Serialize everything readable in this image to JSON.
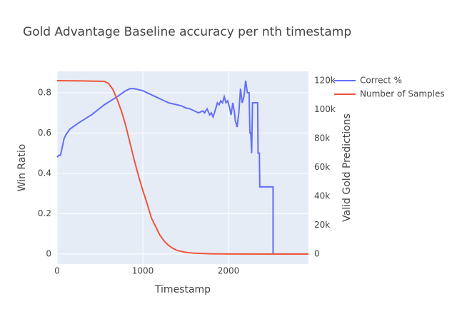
{
  "chart_data": {
    "type": "line",
    "title": "Gold Advantage Baseline accuracy per nth timestamp",
    "x_label": "Timestamp",
    "y_label": "Win Ratio",
    "y2_label": "Valid Gold Predictions",
    "xlim": [
      0,
      2933
    ],
    "xticks": [
      0,
      1000,
      2000
    ],
    "ylim": [
      -0.05,
      0.906
    ],
    "yticks": [
      0,
      0.2,
      0.4,
      0.6,
      0.8
    ],
    "y2lim": [
      -6900,
      126400
    ],
    "y2ticks": [
      0,
      {
        "value": 20000,
        "label": "20k"
      },
      {
        "value": 40000,
        "label": "40k"
      },
      {
        "value": 60000,
        "label": "60k"
      },
      {
        "value": 80000,
        "label": "80k"
      },
      {
        "value": 100000,
        "label": "100k"
      },
      {
        "value": 120000,
        "label": "120k"
      }
    ],
    "grid": true,
    "legend": "top-right",
    "series": [
      {
        "name": "Correct %",
        "color": "#636efa",
        "x": [
          0,
          20,
          40,
          60,
          80,
          100,
          150,
          250,
          400,
          550,
          700,
          800,
          850,
          900,
          1000,
          1050,
          1150,
          1250,
          1300,
          1350,
          1400,
          1450,
          1500,
          1550,
          1600,
          1650,
          1700,
          1720,
          1750,
          1780,
          1800,
          1820,
          1850,
          1870,
          1890,
          1910,
          1930,
          1950,
          1970,
          1990,
          2010,
          2030,
          2050,
          2070,
          2080,
          2100,
          2120,
          2140,
          2160,
          2180,
          2200,
          2220,
          2240,
          2250,
          2260,
          2270,
          2280,
          2340,
          2345,
          2360,
          2365,
          2520,
          2520,
          2933
        ],
        "values": [
          0.48,
          0.49,
          0.49,
          0.53,
          0.57,
          0.59,
          0.62,
          0.65,
          0.69,
          0.74,
          0.78,
          0.81,
          0.82,
          0.82,
          0.81,
          0.8,
          0.78,
          0.76,
          0.75,
          0.745,
          0.74,
          0.735,
          0.725,
          0.72,
          0.71,
          0.7,
          0.71,
          0.7,
          0.72,
          0.69,
          0.7,
          0.68,
          0.72,
          0.75,
          0.74,
          0.76,
          0.75,
          0.78,
          0.75,
          0.76,
          0.73,
          0.69,
          0.75,
          0.7,
          0.66,
          0.63,
          0.7,
          0.82,
          0.75,
          0.78,
          0.86,
          0.8,
          0.8,
          0.6,
          0.6,
          0.5,
          0.75,
          0.75,
          0.5,
          0.5,
          0.333,
          0.333,
          0,
          0
        ]
      },
      {
        "name": "Number of Samples",
        "color": "#ef553b",
        "axis": "y2",
        "x": [
          0,
          300,
          550,
          600,
          650,
          700,
          750,
          800,
          850,
          900,
          950,
          1000,
          1050,
          1100,
          1150,
          1200,
          1250,
          1300,
          1350,
          1400,
          1500,
          1600,
          1800,
          2000,
          2933
        ],
        "values": [
          120000,
          119800,
          119500,
          118000,
          114000,
          107000,
          99000,
          89000,
          77000,
          65000,
          54000,
          44000,
          35000,
          25000,
          19000,
          13000,
          9000,
          6000,
          4000,
          2500,
          1200,
          600,
          200,
          50,
          0
        ]
      }
    ]
  }
}
